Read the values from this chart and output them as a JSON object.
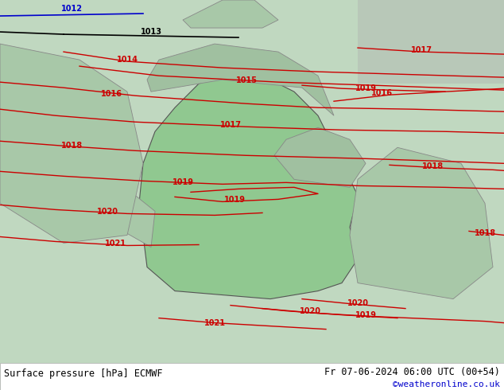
{
  "title_left": "Surface pressure [hPa] ECMWF",
  "title_right": "Fr 07-06-2024 06:00 UTC (00+54)",
  "credit": "©weatheronline.co.uk",
  "bg_color": "#c8e6c8",
  "bottom_bar_color": "#ffffff",
  "bottom_text_color": "#000000",
  "credit_color": "#0000cc",
  "figsize": [
    6.34,
    4.9
  ],
  "dpi": 100
}
